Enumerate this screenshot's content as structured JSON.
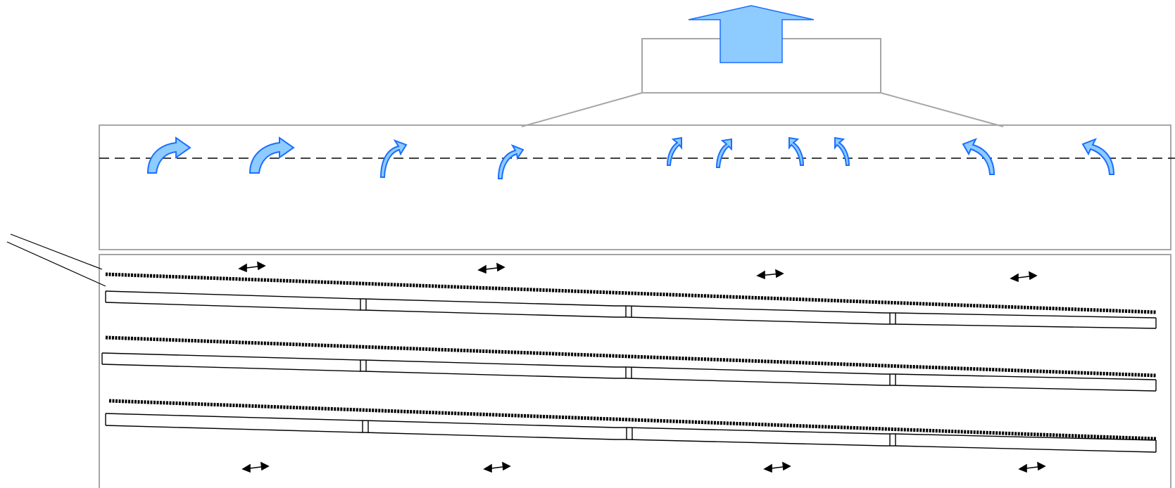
{
  "diagram": {
    "description_visible_text": [],
    "colors": {
      "box_stroke": "#a6a6a6",
      "line": "#000000",
      "arrow_fill": "#8ecbff",
      "arrow_stroke": "#1a6fff"
    },
    "regions": {
      "exhaust_hood": {
        "label": ""
      },
      "duct_plenum": {
        "label": ""
      },
      "shelf_rack": {
        "label": ""
      }
    },
    "elements": {
      "top_exhaust_arrow": {
        "icon": "up-arrow-icon"
      },
      "airflow_arrows": {
        "count": 10,
        "icon": "curved-arrow-icon"
      },
      "shelves": {
        "count": 3
      },
      "double_arrows_top": {
        "count": 4,
        "icon": "double-arrow-icon"
      },
      "double_arrows_bottom": {
        "count": 4,
        "icon": "double-arrow-icon"
      }
    }
  }
}
